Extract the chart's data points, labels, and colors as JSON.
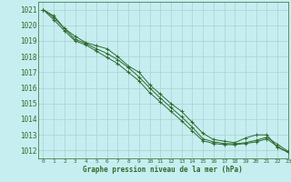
{
  "background_color": "#c6eef0",
  "grid_color": "#aed4d6",
  "line_color": "#2d6a2d",
  "xlabel": "Graphe pression niveau de la mer (hPa)",
  "ylim": [
    1011.5,
    1021.5
  ],
  "xlim": [
    -0.5,
    23
  ],
  "yticks": [
    1012,
    1013,
    1014,
    1015,
    1016,
    1017,
    1018,
    1019,
    1020,
    1021
  ],
  "xticks": [
    0,
    1,
    2,
    3,
    4,
    5,
    6,
    7,
    8,
    9,
    10,
    11,
    12,
    13,
    14,
    15,
    16,
    17,
    18,
    19,
    20,
    21,
    22,
    23
  ],
  "series": [
    [
      1021.0,
      1020.6,
      1019.8,
      1019.3,
      1018.9,
      1018.7,
      1018.5,
      1018.0,
      1017.4,
      1017.0,
      1016.2,
      1015.6,
      1015.0,
      1014.5,
      1013.8,
      1013.1,
      1012.7,
      1012.6,
      1012.5,
      1012.8,
      1013.0,
      1013.0,
      1012.2,
      1011.9
    ],
    [
      1021.0,
      1020.5,
      1019.8,
      1019.1,
      1018.85,
      1018.5,
      1018.2,
      1017.8,
      1017.3,
      1016.7,
      1016.0,
      1015.35,
      1014.75,
      1014.15,
      1013.5,
      1012.75,
      1012.55,
      1012.45,
      1012.42,
      1012.5,
      1012.65,
      1012.85,
      1012.4,
      1011.95
    ],
    [
      1021.0,
      1020.35,
      1019.65,
      1019.0,
      1018.75,
      1018.35,
      1017.95,
      1017.55,
      1017.0,
      1016.45,
      1015.7,
      1015.1,
      1014.5,
      1013.9,
      1013.25,
      1012.62,
      1012.45,
      1012.38,
      1012.37,
      1012.45,
      1012.55,
      1012.75,
      1012.25,
      1011.88
    ]
  ]
}
